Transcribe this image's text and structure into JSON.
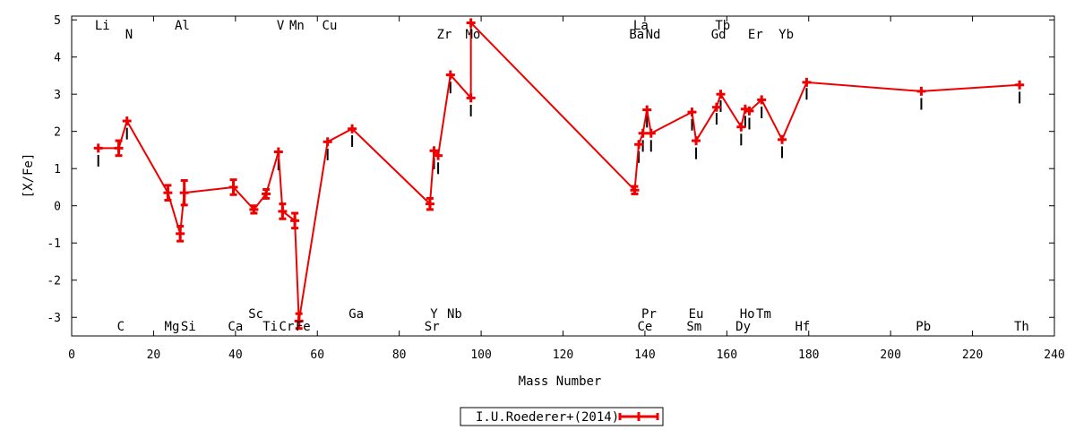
{
  "chart_data": {
    "type": "line",
    "xlabel": "Mass Number",
    "ylabel": "[X/Fe]",
    "xlim": [
      0,
      240
    ],
    "ylim": [
      -3.5,
      5.1
    ],
    "xticks": [
      "0",
      "20",
      "40",
      "60",
      "80",
      "100",
      "120",
      "140",
      "160",
      "180",
      "200",
      "220",
      "240"
    ],
    "yticks": [
      "5",
      "4",
      "3",
      "2",
      "1",
      "0",
      "-1",
      "-2",
      "-3"
    ],
    "legend": {
      "position": "bottom-center",
      "label": "I.U.Roederer+(2014)"
    },
    "series": [
      {
        "name": "I.U.Roederer+(2014)",
        "color": "#ee0000",
        "points": [
          {
            "x": 6.5,
            "y": 1.55,
            "err": 0.0
          },
          {
            "x": 11.5,
            "y": 1.55,
            "err": 0.2
          },
          {
            "x": 13.5,
            "y": 2.28,
            "err": 0.0
          },
          {
            "x": 23.5,
            "y": 0.35,
            "err": 0.2
          },
          {
            "x": 26.5,
            "y": -0.75,
            "err": 0.2
          },
          {
            "x": 27.5,
            "y": 0.35,
            "err": 0.33
          },
          {
            "x": 39.5,
            "y": 0.5,
            "err": 0.2
          },
          {
            "x": 44.5,
            "y": -0.1,
            "err": 0.1
          },
          {
            "x": 47.5,
            "y": 0.32,
            "err": 0.12
          },
          {
            "x": 50.5,
            "y": 1.45,
            "err": 0.0
          },
          {
            "x": 51.5,
            "y": -0.15,
            "err": 0.2
          },
          {
            "x": 54.5,
            "y": -0.4,
            "err": 0.2
          },
          {
            "x": 55.5,
            "y": -3.1,
            "err": 0.2
          },
          {
            "x": 62.5,
            "y": 1.72,
            "err": 0.0
          },
          {
            "x": 68.5,
            "y": 2.07,
            "err": 0.0
          },
          {
            "x": 87.5,
            "y": 0.05,
            "err": 0.15
          },
          {
            "x": 88.5,
            "y": 1.48,
            "err": 0.0
          },
          {
            "x": 89.5,
            "y": 1.35,
            "err": 0.0
          },
          {
            "x": 92.5,
            "y": 3.52,
            "err": 0.0
          },
          {
            "x": 97.5,
            "y": 2.9,
            "err": 0.0
          },
          {
            "x": 97.5,
            "y": 4.92,
            "err": 0.0
          },
          {
            "x": 137.5,
            "y": 0.42,
            "err": 0.1
          },
          {
            "x": 138.5,
            "y": 1.65,
            "err": 0.0
          },
          {
            "x": 139.5,
            "y": 1.95,
            "err": 0.0
          },
          {
            "x": 140.5,
            "y": 2.58,
            "err": 0.0
          },
          {
            "x": 141.5,
            "y": 1.95,
            "err": 0.0
          },
          {
            "x": 151.5,
            "y": 2.52,
            "err": 0.0
          },
          {
            "x": 152.5,
            "y": 1.75,
            "err": 0.0
          },
          {
            "x": 157.5,
            "y": 2.65,
            "err": 0.0
          },
          {
            "x": 158.5,
            "y": 3.0,
            "err": 0.0
          },
          {
            "x": 163.5,
            "y": 2.12,
            "err": 0.0
          },
          {
            "x": 164.5,
            "y": 2.6,
            "err": 0.0
          },
          {
            "x": 165.5,
            "y": 2.55,
            "err": 0.0
          },
          {
            "x": 168.5,
            "y": 2.85,
            "err": 0.0
          },
          {
            "x": 173.5,
            "y": 1.78,
            "err": 0.0
          },
          {
            "x": 179.5,
            "y": 3.32,
            "err": 0.0
          },
          {
            "x": 207.5,
            "y": 3.08,
            "err": 0.0
          },
          {
            "x": 231.5,
            "y": 3.25,
            "err": 0.0
          }
        ]
      },
      {
        "name": "",
        "color": "#000000",
        "points": [
          {
            "x": 6.5,
            "y": 1.15
          },
          {
            "x": 13.5,
            "y": 1.88
          },
          {
            "x": 50.5,
            "y": 1.05
          },
          {
            "x": 62.5,
            "y": 1.32
          },
          {
            "x": 68.5,
            "y": 1.68
          },
          {
            "x": 88.5,
            "y": 1.08
          },
          {
            "x": 89.5,
            "y": 0.95
          },
          {
            "x": 92.5,
            "y": 3.12
          },
          {
            "x": 97.5,
            "y": 2.5
          },
          {
            "x": 138.5,
            "y": 1.25
          },
          {
            "x": 139.5,
            "y": 1.55
          },
          {
            "x": 140.5,
            "y": 2.2
          },
          {
            "x": 141.5,
            "y": 1.55
          },
          {
            "x": 151.5,
            "y": 2.12
          },
          {
            "x": 152.5,
            "y": 1.35
          },
          {
            "x": 157.5,
            "y": 2.28
          },
          {
            "x": 158.5,
            "y": 2.62
          },
          {
            "x": 163.5,
            "y": 1.72
          },
          {
            "x": 164.5,
            "y": 2.2
          },
          {
            "x": 165.5,
            "y": 2.15
          },
          {
            "x": 168.5,
            "y": 2.45
          },
          {
            "x": 173.5,
            "y": 1.38
          },
          {
            "x": 179.5,
            "y": 2.95
          },
          {
            "x": 207.5,
            "y": 2.68
          },
          {
            "x": 231.5,
            "y": 2.85
          }
        ]
      }
    ],
    "element_labels": [
      {
        "text": "Li",
        "x": 7.5,
        "row": "top1"
      },
      {
        "text": "N",
        "x": 14,
        "row": "top2"
      },
      {
        "text": "Al",
        "x": 27,
        "row": "top1"
      },
      {
        "text": "V",
        "x": 51,
        "row": "top1"
      },
      {
        "text": "Mn",
        "x": 55,
        "row": "top1"
      },
      {
        "text": "Cu",
        "x": 63,
        "row": "top1"
      },
      {
        "text": "Zr",
        "x": 91,
        "row": "top2"
      },
      {
        "text": "Mo",
        "x": 98,
        "row": "top2"
      },
      {
        "text": "La",
        "x": 139,
        "row": "top1"
      },
      {
        "text": "Ba",
        "x": 138,
        "row": "top2"
      },
      {
        "text": "Nd",
        "x": 142,
        "row": "top2"
      },
      {
        "text": "Tb",
        "x": 159,
        "row": "top1"
      },
      {
        "text": "Gd",
        "x": 158,
        "row": "top2"
      },
      {
        "text": "Er",
        "x": 167,
        "row": "top2"
      },
      {
        "text": "Yb",
        "x": 174.5,
        "row": "top2"
      },
      {
        "text": "Sc",
        "x": 45,
        "row": "bot1"
      },
      {
        "text": "Ga",
        "x": 69.5,
        "row": "bot1"
      },
      {
        "text": "Y",
        "x": 88.5,
        "row": "bot1"
      },
      {
        "text": "Nb",
        "x": 93.5,
        "row": "bot1"
      },
      {
        "text": "Pr",
        "x": 141,
        "row": "bot1"
      },
      {
        "text": "Eu",
        "x": 152.5,
        "row": "bot1"
      },
      {
        "text": "Ho",
        "x": 165,
        "row": "bot1"
      },
      {
        "text": "Tm",
        "x": 169,
        "row": "bot1"
      },
      {
        "text": "C",
        "x": 12,
        "row": "bot2"
      },
      {
        "text": "Mg",
        "x": 24.5,
        "row": "bot2"
      },
      {
        "text": "Si",
        "x": 28.5,
        "row": "bot2"
      },
      {
        "text": "Ca",
        "x": 40,
        "row": "bot2"
      },
      {
        "text": "Ti",
        "x": 48.5,
        "row": "bot2"
      },
      {
        "text": "Cr",
        "x": 52.5,
        "row": "bot2"
      },
      {
        "text": "Fe",
        "x": 56.5,
        "row": "bot2"
      },
      {
        "text": "Sr",
        "x": 88,
        "row": "bot2"
      },
      {
        "text": "Ce",
        "x": 140,
        "row": "bot2"
      },
      {
        "text": "Sm",
        "x": 152,
        "row": "bot2"
      },
      {
        "text": "Dy",
        "x": 164,
        "row": "bot2"
      },
      {
        "text": "Hf",
        "x": 178.5,
        "row": "bot2"
      },
      {
        "text": "Pb",
        "x": 208,
        "row": "bot2"
      },
      {
        "text": "Th",
        "x": 232,
        "row": "bot2"
      }
    ]
  }
}
